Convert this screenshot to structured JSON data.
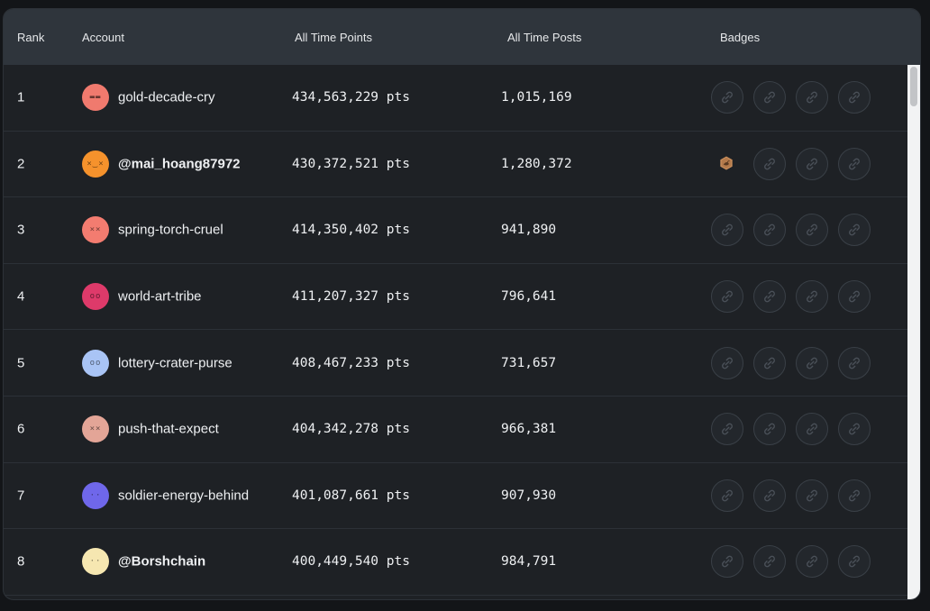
{
  "columns": {
    "rank": "Rank",
    "account": "Account",
    "points": "All Time Points",
    "posts": "All Time Posts",
    "badges": "Badges"
  },
  "colors": {
    "panel": "#1e2125",
    "header": "#2f353c",
    "earned_badge": "#c98e5c"
  },
  "rows": [
    {
      "rank": "1",
      "account": "gold-decade-cry",
      "bold": false,
      "points": "434,563,229 pts",
      "posts": "1,015,169",
      "avatar_color": "#f07a6e",
      "avatar_face": "▬▬",
      "earned": false
    },
    {
      "rank": "2",
      "account": "@mai_hoang87972",
      "bold": true,
      "points": "430,372,521 pts",
      "posts": "1,280,372",
      "avatar_color": "#f5922c",
      "avatar_face": "×‿×",
      "earned": true
    },
    {
      "rank": "3",
      "account": "spring-torch-cruel",
      "bold": false,
      "points": "414,350,402 pts",
      "posts": "941,890",
      "avatar_color": "#f37c70",
      "avatar_face": "××",
      "earned": false
    },
    {
      "rank": "4",
      "account": "world-art-tribe",
      "bold": false,
      "points": "411,207,327 pts",
      "posts": "796,641",
      "avatar_color": "#de3a6a",
      "avatar_face": "oo",
      "earned": false
    },
    {
      "rank": "5",
      "account": "lottery-crater-purse",
      "bold": false,
      "points": "408,467,233 pts",
      "posts": "731,657",
      "avatar_color": "#a9c4f5",
      "avatar_face": "oo",
      "earned": false
    },
    {
      "rank": "6",
      "account": "push-that-expect",
      "bold": false,
      "points": "404,342,278 pts",
      "posts": "966,381",
      "avatar_color": "#e3a597",
      "avatar_face": "××",
      "earned": false
    },
    {
      "rank": "7",
      "account": "soldier-energy-behind",
      "bold": false,
      "points": "401,087,661 pts",
      "posts": "907,930",
      "avatar_color": "#6f67ea",
      "avatar_face": "··",
      "earned": false
    },
    {
      "rank": "8",
      "account": "@Borshchain",
      "bold": true,
      "points": "400,449,540 pts",
      "posts": "984,791",
      "avatar_color": "#f6e7b1",
      "avatar_face": "··",
      "earned": false
    }
  ],
  "badge_icon": "link-badge-icon",
  "badges_per_row": 4
}
